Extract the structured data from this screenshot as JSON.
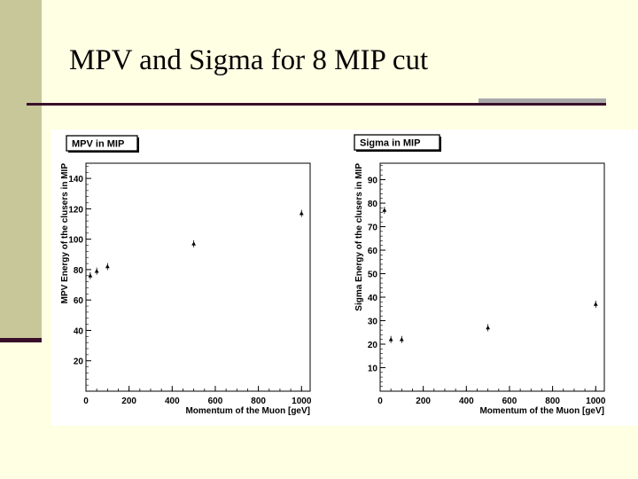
{
  "slide": {
    "title": "MPV and Sigma for 8 MIP cut"
  },
  "chart_data": [
    {
      "type": "scatter",
      "title": "MPV in MIP",
      "xlabel": "Momentum of the Muon [geV]",
      "ylabel": "MPV Energy  of the clusers in MIP",
      "xlim": [
        0,
        1040
      ],
      "ylim": [
        0,
        150
      ],
      "xticks": [
        0,
        200,
        400,
        600,
        800,
        1000
      ],
      "yticks": [
        20,
        40,
        60,
        80,
        100,
        120,
        140
      ],
      "ytick_labels": [
        "20",
        "40",
        "60",
        "80",
        "100",
        "120",
        "140"
      ],
      "points": [
        {
          "x": 20,
          "y": 76
        },
        {
          "x": 50,
          "y": 79
        },
        {
          "x": 100,
          "y": 82
        },
        {
          "x": 500,
          "y": 97
        },
        {
          "x": 1000,
          "y": 117
        }
      ]
    },
    {
      "type": "scatter",
      "title": "Sigma in MIP",
      "xlabel": "Momentum of the Muon [geV]",
      "ylabel": "Sigma Energy  of the clusers in MIP",
      "xlim": [
        0,
        1040
      ],
      "ylim": [
        0,
        97
      ],
      "xticks": [
        0,
        200,
        400,
        600,
        800,
        1000
      ],
      "yticks": [
        10,
        20,
        30,
        40,
        50,
        60,
        70,
        80,
        90
      ],
      "ytick_labels": [
        "10",
        "20",
        "30",
        "40",
        "50",
        "60",
        "70",
        "80",
        "90"
      ],
      "points": [
        {
          "x": 20,
          "y": 77
        },
        {
          "x": 50,
          "y": 22
        },
        {
          "x": 100,
          "y": 22
        },
        {
          "x": 500,
          "y": 27
        },
        {
          "x": 1000,
          "y": 37
        }
      ]
    }
  ]
}
